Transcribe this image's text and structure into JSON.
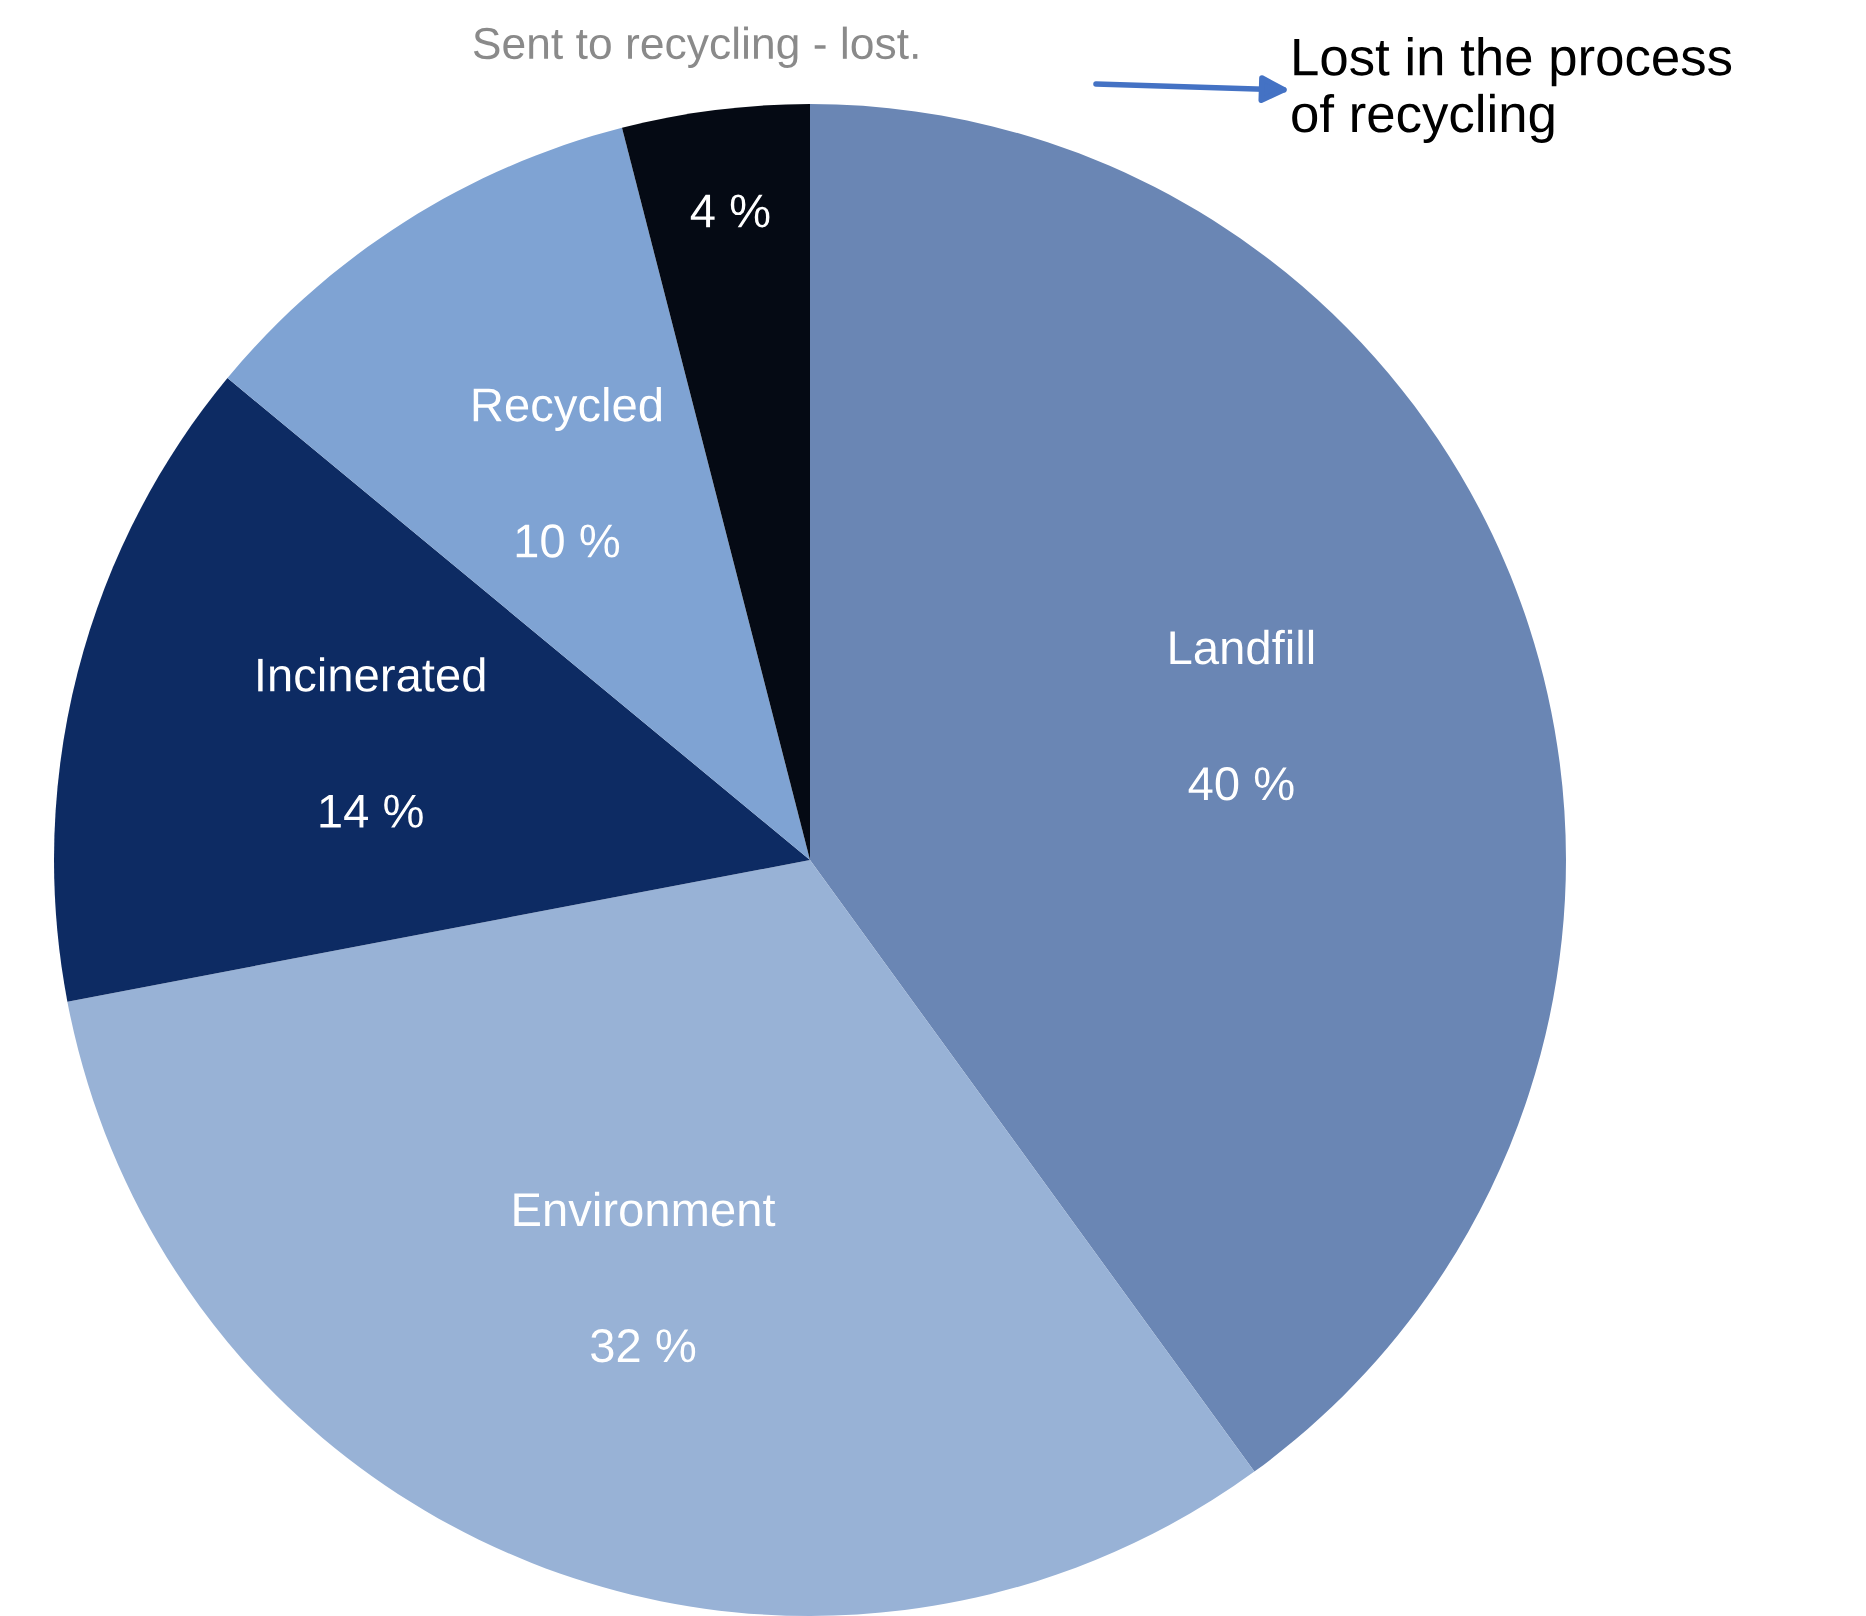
{
  "chart_data": {
    "type": "pie",
    "categories": [
      "Landfill",
      "Environment",
      "Incinerated",
      "Recycled",
      "Sent to recycling - lost."
    ],
    "values": [
      40,
      32,
      14,
      10,
      4
    ],
    "value_labels": [
      "40 %",
      "32 %",
      "14 %",
      "10 %",
      "4 %"
    ],
    "colors": [
      "#6a86b4",
      "#98b2d6",
      "#0d2b63",
      "#7fa3d3",
      "#050a14"
    ],
    "annotations": [
      {
        "text": "Lost in the process\nof recycling"
      }
    ],
    "legend": false
  }
}
